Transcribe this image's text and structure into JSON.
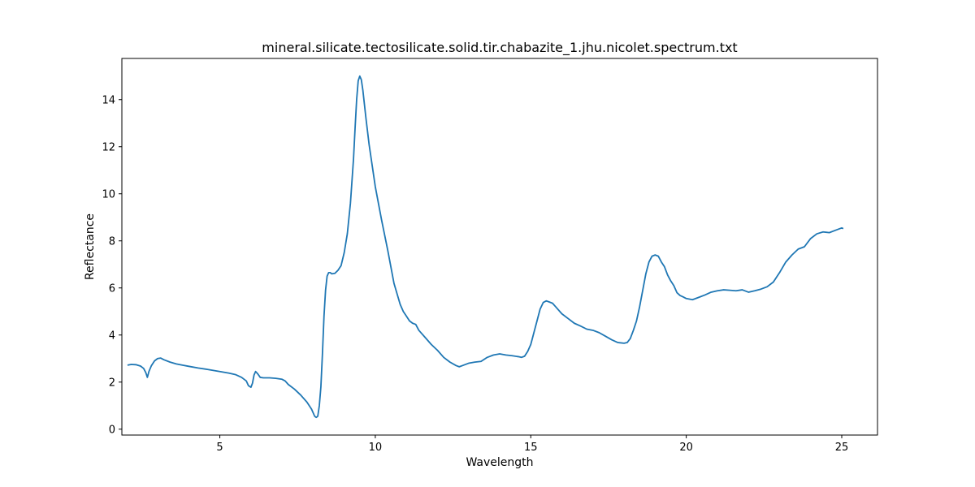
{
  "chart_data": {
    "type": "line",
    "title": "mineral.silicate.tectosilicate.solid.tir.chabazite_1.jhu.nicolet.spectrum.txt",
    "xlabel": "Wavelength",
    "ylabel": "Reflectance",
    "xlim": [
      1.85,
      26.15
    ],
    "ylim": [
      -0.25,
      15.75
    ],
    "xticks": [
      5,
      10,
      15,
      20,
      25
    ],
    "yticks": [
      0,
      2,
      4,
      6,
      8,
      10,
      12,
      14
    ],
    "grid": false,
    "colors": {
      "line": "#1f77b4"
    },
    "series": [
      {
        "x": [
          2.03,
          2.15,
          2.3,
          2.45,
          2.55,
          2.62,
          2.67,
          2.72,
          2.8,
          2.9,
          3.0,
          3.1,
          3.2,
          3.4,
          3.6,
          3.8,
          4.0,
          4.3,
          4.6,
          5.0,
          5.3,
          5.5,
          5.7,
          5.85,
          5.92,
          6.0,
          6.05,
          6.1,
          6.15,
          6.22,
          6.3,
          6.4,
          6.6,
          6.8,
          7.0,
          7.1,
          7.2,
          7.4,
          7.6,
          7.8,
          7.95,
          8.05,
          8.1,
          8.15,
          8.2,
          8.25,
          8.3,
          8.35,
          8.4,
          8.45,
          8.5,
          8.55,
          8.6,
          8.7,
          8.8,
          8.9,
          9.0,
          9.1,
          9.2,
          9.3,
          9.35,
          9.4,
          9.45,
          9.5,
          9.55,
          9.6,
          9.65,
          9.7,
          9.8,
          9.9,
          10.0,
          10.2,
          10.4,
          10.6,
          10.8,
          10.9,
          11.0,
          11.1,
          11.2,
          11.3,
          11.4,
          11.6,
          11.8,
          12.0,
          12.2,
          12.4,
          12.6,
          12.7,
          12.8,
          13.0,
          13.2,
          13.4,
          13.6,
          13.8,
          14.0,
          14.2,
          14.4,
          14.6,
          14.7,
          14.8,
          14.9,
          15.0,
          15.1,
          15.2,
          15.3,
          15.4,
          15.5,
          15.6,
          15.7,
          15.8,
          16.0,
          16.2,
          16.4,
          16.6,
          16.8,
          17.0,
          17.2,
          17.4,
          17.6,
          17.8,
          18.0,
          18.1,
          18.2,
          18.3,
          18.4,
          18.5,
          18.6,
          18.7,
          18.8,
          18.9,
          19.0,
          19.1,
          19.2,
          19.3,
          19.4,
          19.5,
          19.6,
          19.7,
          19.8,
          19.9,
          20.0,
          20.2,
          20.4,
          20.6,
          20.8,
          21.0,
          21.2,
          21.4,
          21.6,
          21.8,
          22.0,
          22.2,
          22.4,
          22.6,
          22.8,
          23.0,
          23.2,
          23.4,
          23.6,
          23.8,
          24.0,
          24.2,
          24.4,
          24.6,
          24.8,
          25.0,
          25.05
        ],
        "y": [
          2.72,
          2.75,
          2.74,
          2.68,
          2.58,
          2.4,
          2.2,
          2.45,
          2.7,
          2.9,
          3.0,
          3.02,
          2.95,
          2.85,
          2.77,
          2.72,
          2.67,
          2.6,
          2.54,
          2.45,
          2.38,
          2.32,
          2.2,
          2.05,
          1.85,
          1.78,
          1.95,
          2.3,
          2.45,
          2.35,
          2.2,
          2.18,
          2.18,
          2.16,
          2.12,
          2.05,
          1.9,
          1.7,
          1.45,
          1.15,
          0.85,
          0.55,
          0.5,
          0.55,
          1.0,
          1.8,
          3.2,
          4.8,
          5.9,
          6.5,
          6.65,
          6.65,
          6.6,
          6.62,
          6.75,
          6.95,
          7.5,
          8.3,
          9.6,
          11.5,
          12.8,
          14.0,
          14.8,
          15.0,
          14.85,
          14.4,
          13.8,
          13.2,
          12.1,
          11.2,
          10.3,
          8.9,
          7.6,
          6.2,
          5.3,
          5.0,
          4.8,
          4.6,
          4.5,
          4.45,
          4.2,
          3.9,
          3.6,
          3.35,
          3.05,
          2.85,
          2.7,
          2.65,
          2.7,
          2.8,
          2.85,
          2.88,
          3.05,
          3.15,
          3.2,
          3.15,
          3.12,
          3.08,
          3.05,
          3.1,
          3.3,
          3.6,
          4.1,
          4.6,
          5.1,
          5.38,
          5.45,
          5.4,
          5.35,
          5.2,
          4.9,
          4.7,
          4.5,
          4.38,
          4.25,
          4.2,
          4.1,
          3.95,
          3.8,
          3.68,
          3.65,
          3.68,
          3.85,
          4.2,
          4.6,
          5.2,
          5.9,
          6.6,
          7.1,
          7.35,
          7.4,
          7.35,
          7.1,
          6.9,
          6.55,
          6.3,
          6.1,
          5.8,
          5.68,
          5.62,
          5.55,
          5.5,
          5.6,
          5.7,
          5.82,
          5.88,
          5.92,
          5.9,
          5.88,
          5.92,
          5.82,
          5.88,
          5.95,
          6.05,
          6.25,
          6.65,
          7.1,
          7.4,
          7.65,
          7.75,
          8.1,
          8.3,
          8.38,
          8.35,
          8.45,
          8.55,
          8.52
        ]
      }
    ]
  }
}
